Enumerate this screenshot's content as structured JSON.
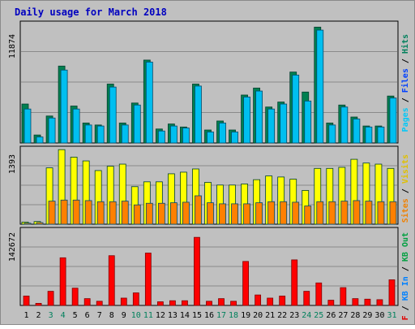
{
  "title": "Daily usage for March 2018",
  "chart_data": [
    {
      "type": "bar",
      "panel": "top",
      "y_max_label": "11874",
      "ylim": [
        0,
        11874
      ],
      "grid": true,
      "categories": [
        "1",
        "2",
        "3",
        "4",
        "5",
        "6",
        "7",
        "8",
        "9",
        "10",
        "11",
        "12",
        "13",
        "14",
        "15",
        "16",
        "17",
        "18",
        "19",
        "20",
        "21",
        "22",
        "23",
        "24",
        "25",
        "26",
        "27",
        "28",
        "29",
        "30",
        "31"
      ],
      "weekend_days": [
        "3",
        "4",
        "10",
        "11",
        "17",
        "18",
        "24",
        "25",
        "31"
      ],
      "legend": [
        {
          "key": "hits",
          "label": "Hits",
          "color": "#00805c"
        },
        {
          "key": "files",
          "label": "Files",
          "color": "#0040ff"
        },
        {
          "key": "pages",
          "label": "Pages",
          "color": "#00c8f8"
        }
      ],
      "series": [
        {
          "name": "Hits",
          "color": "#008050",
          "values": [
            3900,
            800,
            2700,
            7700,
            3700,
            2000,
            1800,
            5900,
            2000,
            4000,
            8300,
            1400,
            1900,
            1600,
            5900,
            1300,
            2200,
            1300,
            4800,
            5500,
            3600,
            4100,
            7100,
            5100,
            11600,
            2000,
            3800,
            2600,
            1700,
            1700,
            4700
          ]
        },
        {
          "name": "Files",
          "color": "#00bff0",
          "values": [
            3400,
            600,
            2500,
            7300,
            3400,
            1800,
            1700,
            5600,
            1800,
            3800,
            8100,
            1200,
            1700,
            1500,
            5700,
            1100,
            2000,
            1100,
            4600,
            5200,
            3400,
            3900,
            6800,
            4200,
            11300,
            1800,
            3600,
            2400,
            1600,
            1600,
            4500
          ]
        }
      ]
    },
    {
      "type": "bar",
      "panel": "middle",
      "y_max_label": "1393",
      "ylim": [
        0,
        1393
      ],
      "grid": true,
      "categories": [
        "1",
        "2",
        "3",
        "4",
        "5",
        "6",
        "7",
        "8",
        "9",
        "10",
        "11",
        "12",
        "13",
        "14",
        "15",
        "16",
        "17",
        "18",
        "19",
        "20",
        "21",
        "22",
        "23",
        "24",
        "25",
        "26",
        "27",
        "28",
        "29",
        "30",
        "31"
      ],
      "legend": [
        {
          "key": "visits",
          "label": "Visits",
          "color": "#e0c000"
        },
        {
          "key": "sites",
          "label": "Sites",
          "color": "#f08000"
        }
      ],
      "series": [
        {
          "name": "Visits",
          "color": "#ffff00",
          "values": [
            40,
            50,
            1050,
            1390,
            1250,
            1180,
            1000,
            1080,
            1120,
            700,
            790,
            790,
            940,
            970,
            1030,
            780,
            730,
            730,
            750,
            830,
            900,
            880,
            840,
            630,
            1040,
            1040,
            1060,
            1210,
            1140,
            1120,
            1040
          ]
        },
        {
          "name": "Sites",
          "color": "#ff8000",
          "values": [
            20,
            30,
            430,
            450,
            450,
            440,
            420,
            420,
            430,
            360,
            390,
            390,
            400,
            410,
            530,
            400,
            380,
            380,
            380,
            400,
            420,
            420,
            410,
            340,
            420,
            420,
            430,
            440,
            430,
            420,
            420
          ]
        }
      ]
    },
    {
      "type": "bar",
      "panel": "bottom",
      "y_max_label": "142672",
      "ylim": [
        0,
        142672
      ],
      "grid": true,
      "categories": [
        "1",
        "2",
        "3",
        "4",
        "5",
        "6",
        "7",
        "8",
        "9",
        "10",
        "11",
        "12",
        "13",
        "14",
        "15",
        "16",
        "17",
        "18",
        "19",
        "20",
        "21",
        "22",
        "23",
        "24",
        "25",
        "26",
        "27",
        "28",
        "29",
        "30",
        "31"
      ],
      "legend": [
        {
          "key": "kb_out",
          "label": "KB Out",
          "color": "#00a040"
        },
        {
          "key": "kb_in",
          "label": "KB In",
          "color": "#0080ff"
        },
        {
          "key": "kb_f",
          "label": "KB F",
          "color": "#e00000"
        }
      ],
      "series": [
        {
          "name": "KB F",
          "color": "#ff0000",
          "values": [
            18000,
            4000,
            27000,
            91000,
            33000,
            13000,
            8000,
            95000,
            14000,
            24000,
            100000,
            7000,
            9000,
            9000,
            130000,
            8000,
            13000,
            8000,
            84000,
            20000,
            14000,
            18000,
            87000,
            27000,
            43000,
            10000,
            34000,
            13000,
            12000,
            11000,
            49000
          ]
        }
      ]
    }
  ]
}
